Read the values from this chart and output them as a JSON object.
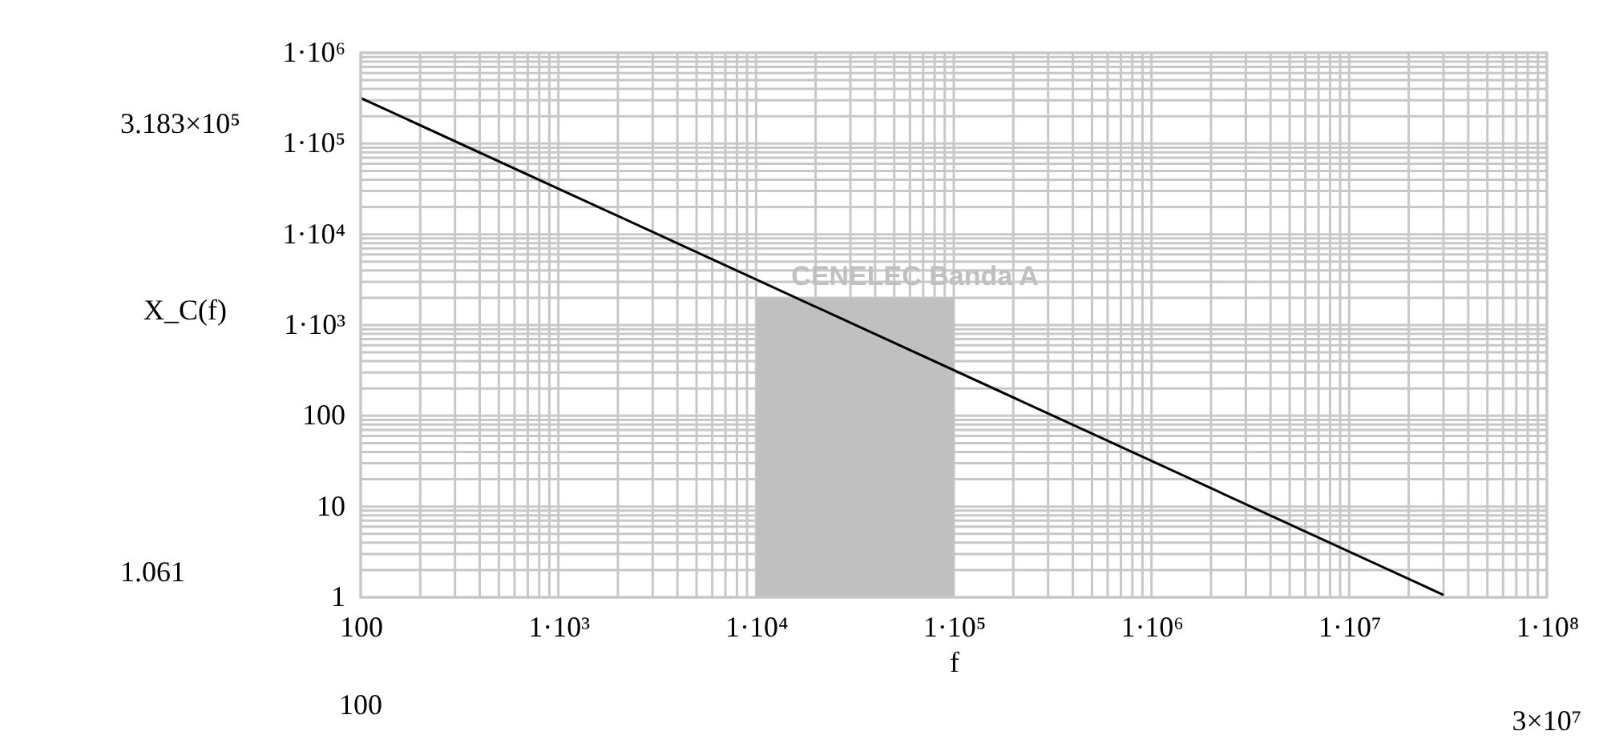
{
  "chart_data": {
    "type": "line",
    "xlabel": "f",
    "ylabel": "X_C(f)",
    "x": [
      100,
      30000000
    ],
    "series": [
      {
        "color": "#000000",
        "values": [
          318300,
          1.061
        ]
      },
      {
        "type": "area",
        "name": "CENELEC Banda A",
        "color": "#c0c0c0",
        "x": [
          10000,
          100000
        ],
        "values": [
          2000,
          2000
        ]
      }
    ],
    "log": "xy",
    "xlim": [
      100,
      100000000
    ],
    "xticks": [
      100,
      {
        "value": 1000,
        "label": "1·10³"
      },
      {
        "value": 10000,
        "label": "1·10⁴"
      },
      {
        "value": 100000,
        "label": "1·10⁵"
      },
      {
        "value": 1000000,
        "label": "1·10⁶"
      },
      {
        "value": 10000000,
        "label": "1·10⁷"
      },
      {
        "value": 100000000,
        "label": "1·10⁸"
      }
    ],
    "ylim": [
      1,
      1000000
    ],
    "yticks": [
      1,
      10,
      100,
      {
        "value": 1000,
        "label": "1·10³"
      },
      {
        "value": 10000,
        "label": "1·10⁴"
      },
      {
        "value": 100000,
        "label": "1·10⁵"
      },
      {
        "value": 1000000,
        "label": "1·10⁶"
      }
    ],
    "grid": true,
    "annotations": [
      "3.183×10⁵",
      "1.061",
      "100",
      "3×10⁷"
    ]
  }
}
